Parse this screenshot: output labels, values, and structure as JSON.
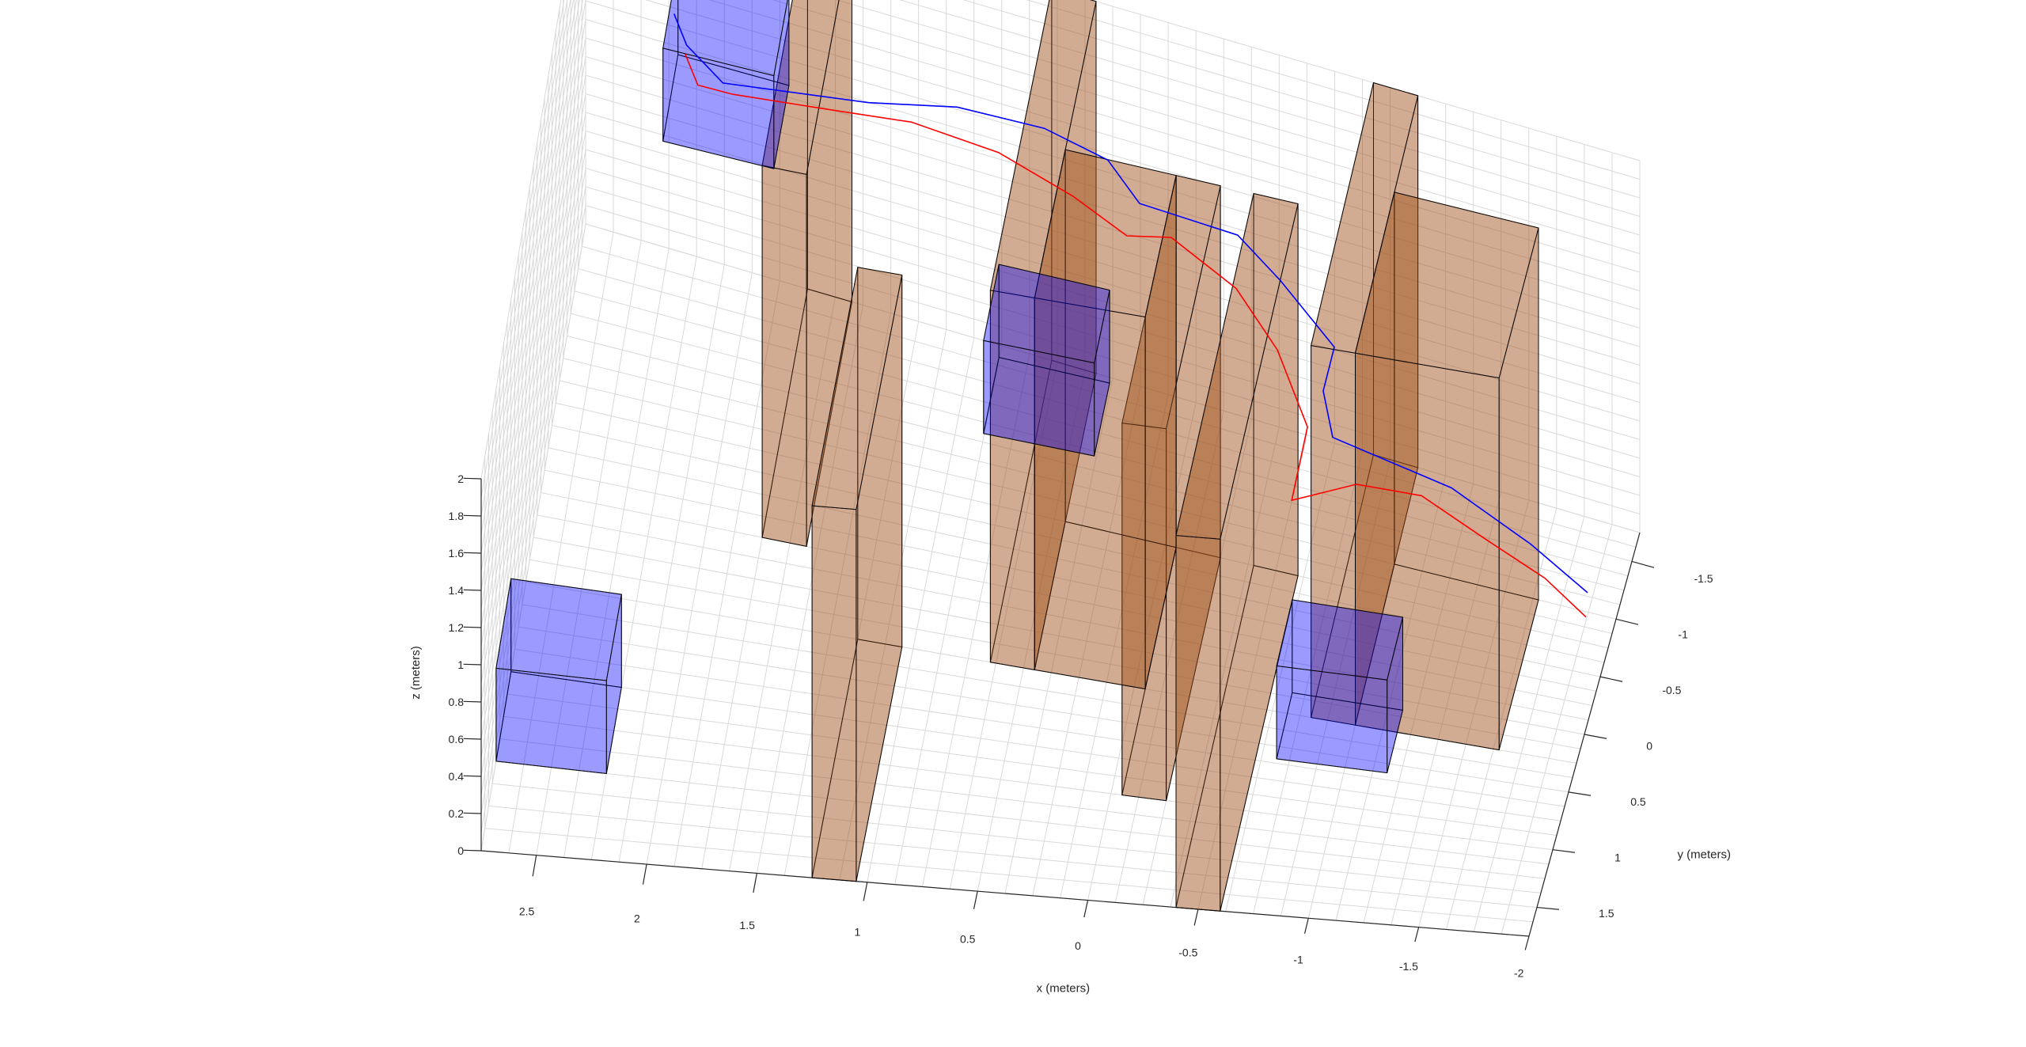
{
  "chart_data": {
    "type": "3d-scene",
    "xlabel": "x (meters)",
    "ylabel": "y (meters)",
    "zlabel": "z (meters)",
    "grid": true,
    "xlim": [
      -2,
      2.75
    ],
    "ylim": [
      -1.75,
      1.75
    ],
    "zlim": [
      0,
      2
    ],
    "x_ticks": [
      "2.5",
      "2",
      "1.5",
      "1",
      "0.5",
      "0",
      "-0.5",
      "-1",
      "-1.5",
      "-2"
    ],
    "y_ticks": [
      "-1.5",
      "-1",
      "-0.5",
      "0",
      "0.5",
      "1",
      "1.5"
    ],
    "z_ticks": [
      "0",
      "0.2",
      "0.4",
      "0.6",
      "0.8",
      "1",
      "1.2",
      "1.4",
      "1.6",
      "1.8",
      "2"
    ],
    "colors": {
      "target_box": "#0000ff",
      "obstacle": "#a0521d",
      "path_blue": "#0000ff",
      "path_red": "#ff0000",
      "grid": "#d9d9d9",
      "axis": "#262626"
    },
    "target_boxes": [
      {
        "x": [
          2.25,
          2.75
        ],
        "y": [
          0.75,
          1.25
        ],
        "z": [
          0,
          0.5
        ]
      },
      {
        "x": [
          1.8,
          2.3
        ],
        "y": [
          -1.5,
          -1.0
        ],
        "z": [
          1.3,
          1.8
        ]
      },
      {
        "x": [
          0.25,
          0.75
        ],
        "y": [
          -0.75,
          -0.25
        ],
        "z": [
          0.8,
          1.3
        ]
      },
      {
        "x": [
          -0.75,
          -1.25
        ],
        "y": [
          0.5,
          1.0
        ],
        "z": [
          0.3,
          0.8
        ]
      }
    ],
    "obstacles": [
      {
        "x": [
          1.55,
          1.75
        ],
        "y": [
          -1.75,
          -0.25
        ],
        "z": [
          0,
          2
        ]
      },
      {
        "x": [
          1.05,
          1.25
        ],
        "y": [
          0.25,
          1.75
        ],
        "z": [
          0,
          2
        ]
      },
      {
        "x": [
          0.45,
          0.65
        ],
        "y": [
          -1.75,
          0.25
        ],
        "z": [
          0,
          2
        ]
      },
      {
        "x": [
          -0.25,
          -0.05
        ],
        "y": [
          -0.75,
          1.0
        ],
        "z": [
          0,
          2
        ]
      },
      {
        "x": [
          -0.05,
          0.45
        ],
        "y": [
          -0.75,
          0.25
        ],
        "z": [
          0,
          2
        ]
      },
      {
        "x": [
          -0.6,
          -0.4
        ],
        "y": [
          -0.75,
          1.75
        ],
        "z": [
          0,
          2
        ]
      },
      {
        "x": [
          -1.0,
          -0.8
        ],
        "y": [
          -1.75,
          0.25
        ],
        "z": [
          0,
          2
        ]
      },
      {
        "x": [
          -1.65,
          -1.0
        ],
        "y": [
          -1.0,
          0.25
        ],
        "z": [
          0,
          2
        ]
      }
    ],
    "series": [
      {
        "color": "blue",
        "points": [
          [
            2.25,
            -1.0,
            2.0
          ],
          [
            2.2,
            -1.05,
            1.8
          ],
          [
            2.05,
            -1.15,
            1.55
          ],
          [
            1.4,
            -1.2,
            1.6
          ],
          [
            1.0,
            -1.2,
            1.7
          ],
          [
            0.6,
            -1.15,
            1.75
          ],
          [
            0.3,
            -1.05,
            1.75
          ],
          [
            0.15,
            -1.0,
            1.6
          ],
          [
            -0.3,
            -0.95,
            1.6
          ],
          [
            -0.5,
            -0.9,
            1.45
          ],
          [
            -0.75,
            -0.85,
            1.2
          ],
          [
            -0.7,
            -0.85,
            0.95
          ],
          [
            -0.75,
            -0.8,
            0.75
          ],
          [
            -1.3,
            -0.7,
            0.7
          ],
          [
            -1.7,
            -0.4,
            0.7
          ],
          [
            -2.0,
            -0.1,
            0.7
          ]
        ]
      },
      {
        "color": "red",
        "points": [
          [
            2.2,
            -1.0,
            1.8
          ],
          [
            2.15,
            -1.05,
            1.6
          ],
          [
            2.0,
            -1.1,
            1.55
          ],
          [
            1.6,
            -1.15,
            1.55
          ],
          [
            1.2,
            -1.15,
            1.6
          ],
          [
            0.8,
            -1.1,
            1.6
          ],
          [
            0.45,
            -1.0,
            1.55
          ],
          [
            0.2,
            -0.95,
            1.45
          ],
          [
            0.0,
            -0.95,
            1.5
          ],
          [
            -0.3,
            -0.9,
            1.35
          ],
          [
            -0.5,
            -0.8,
            1.15
          ],
          [
            -0.65,
            -0.7,
            0.85
          ],
          [
            -0.6,
            -0.55,
            0.55
          ],
          [
            -0.9,
            -0.5,
            0.75
          ],
          [
            -1.2,
            -0.45,
            0.8
          ],
          [
            -1.5,
            -0.3,
            0.75
          ],
          [
            -1.8,
            -0.15,
            0.7
          ],
          [
            -2.0,
            -0.05,
            0.6
          ]
        ]
      }
    ]
  }
}
